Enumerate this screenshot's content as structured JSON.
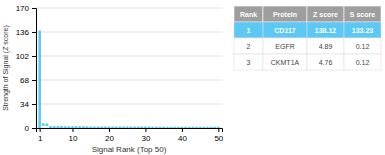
{
  "chart_data": {
    "type": "bar",
    "xlabel": "Signal Rank (Top 50)",
    "ylabel": "Strength of Signal (Z score)",
    "xlim": [
      0,
      51
    ],
    "ylim": [
      0,
      170
    ],
    "xticks": [
      1,
      10,
      20,
      30,
      40,
      50
    ],
    "yticks": [
      0,
      34,
      68,
      102,
      136,
      170
    ],
    "grid": true,
    "series": [
      {
        "type": "bar",
        "color": "#5bc8f5",
        "x": [
          1
        ],
        "values": [
          138.12
        ]
      },
      {
        "type": "scatter",
        "color": "#5bc8f5",
        "x": [
          2,
          3,
          4,
          5,
          6,
          7,
          8,
          9,
          10,
          11,
          12,
          13,
          14,
          15,
          16,
          17,
          18,
          19,
          20,
          21,
          22,
          23,
          24,
          25,
          26,
          27,
          28,
          29,
          30,
          31,
          32,
          33,
          34,
          35,
          36,
          37,
          38,
          39,
          40,
          41,
          42,
          43,
          44,
          45,
          46,
          47,
          48,
          49,
          50
        ],
        "values": [
          4.89,
          4.76,
          1.2,
          1.1,
          1.0,
          0.9,
          0.85,
          0.8,
          0.75,
          0.7,
          0.65,
          0.6,
          0.55,
          0.5,
          0.48,
          0.46,
          0.44,
          0.42,
          0.4,
          0.38,
          0.36,
          0.34,
          0.32,
          0.3,
          0.28,
          0.26,
          0.24,
          0.22,
          0.2,
          0.18,
          0.17,
          0.16,
          0.15,
          0.14,
          0.13,
          0.12,
          0.11,
          0.1,
          0.09,
          0.08,
          0.07,
          0.06,
          0.05,
          0.04,
          0.03,
          0.02,
          0.01,
          0.005,
          0.001
        ]
      }
    ],
    "table": {
      "headers": [
        "Rank",
        "Protein",
        "Z score",
        "S score"
      ],
      "rows": [
        [
          "1",
          "CD117",
          "138.12",
          "133.23"
        ],
        [
          "2",
          "EGFR",
          "4.89",
          "0.12"
        ],
        [
          "3",
          "CKMT1A",
          "4.76",
          "0.12"
        ]
      ]
    }
  }
}
